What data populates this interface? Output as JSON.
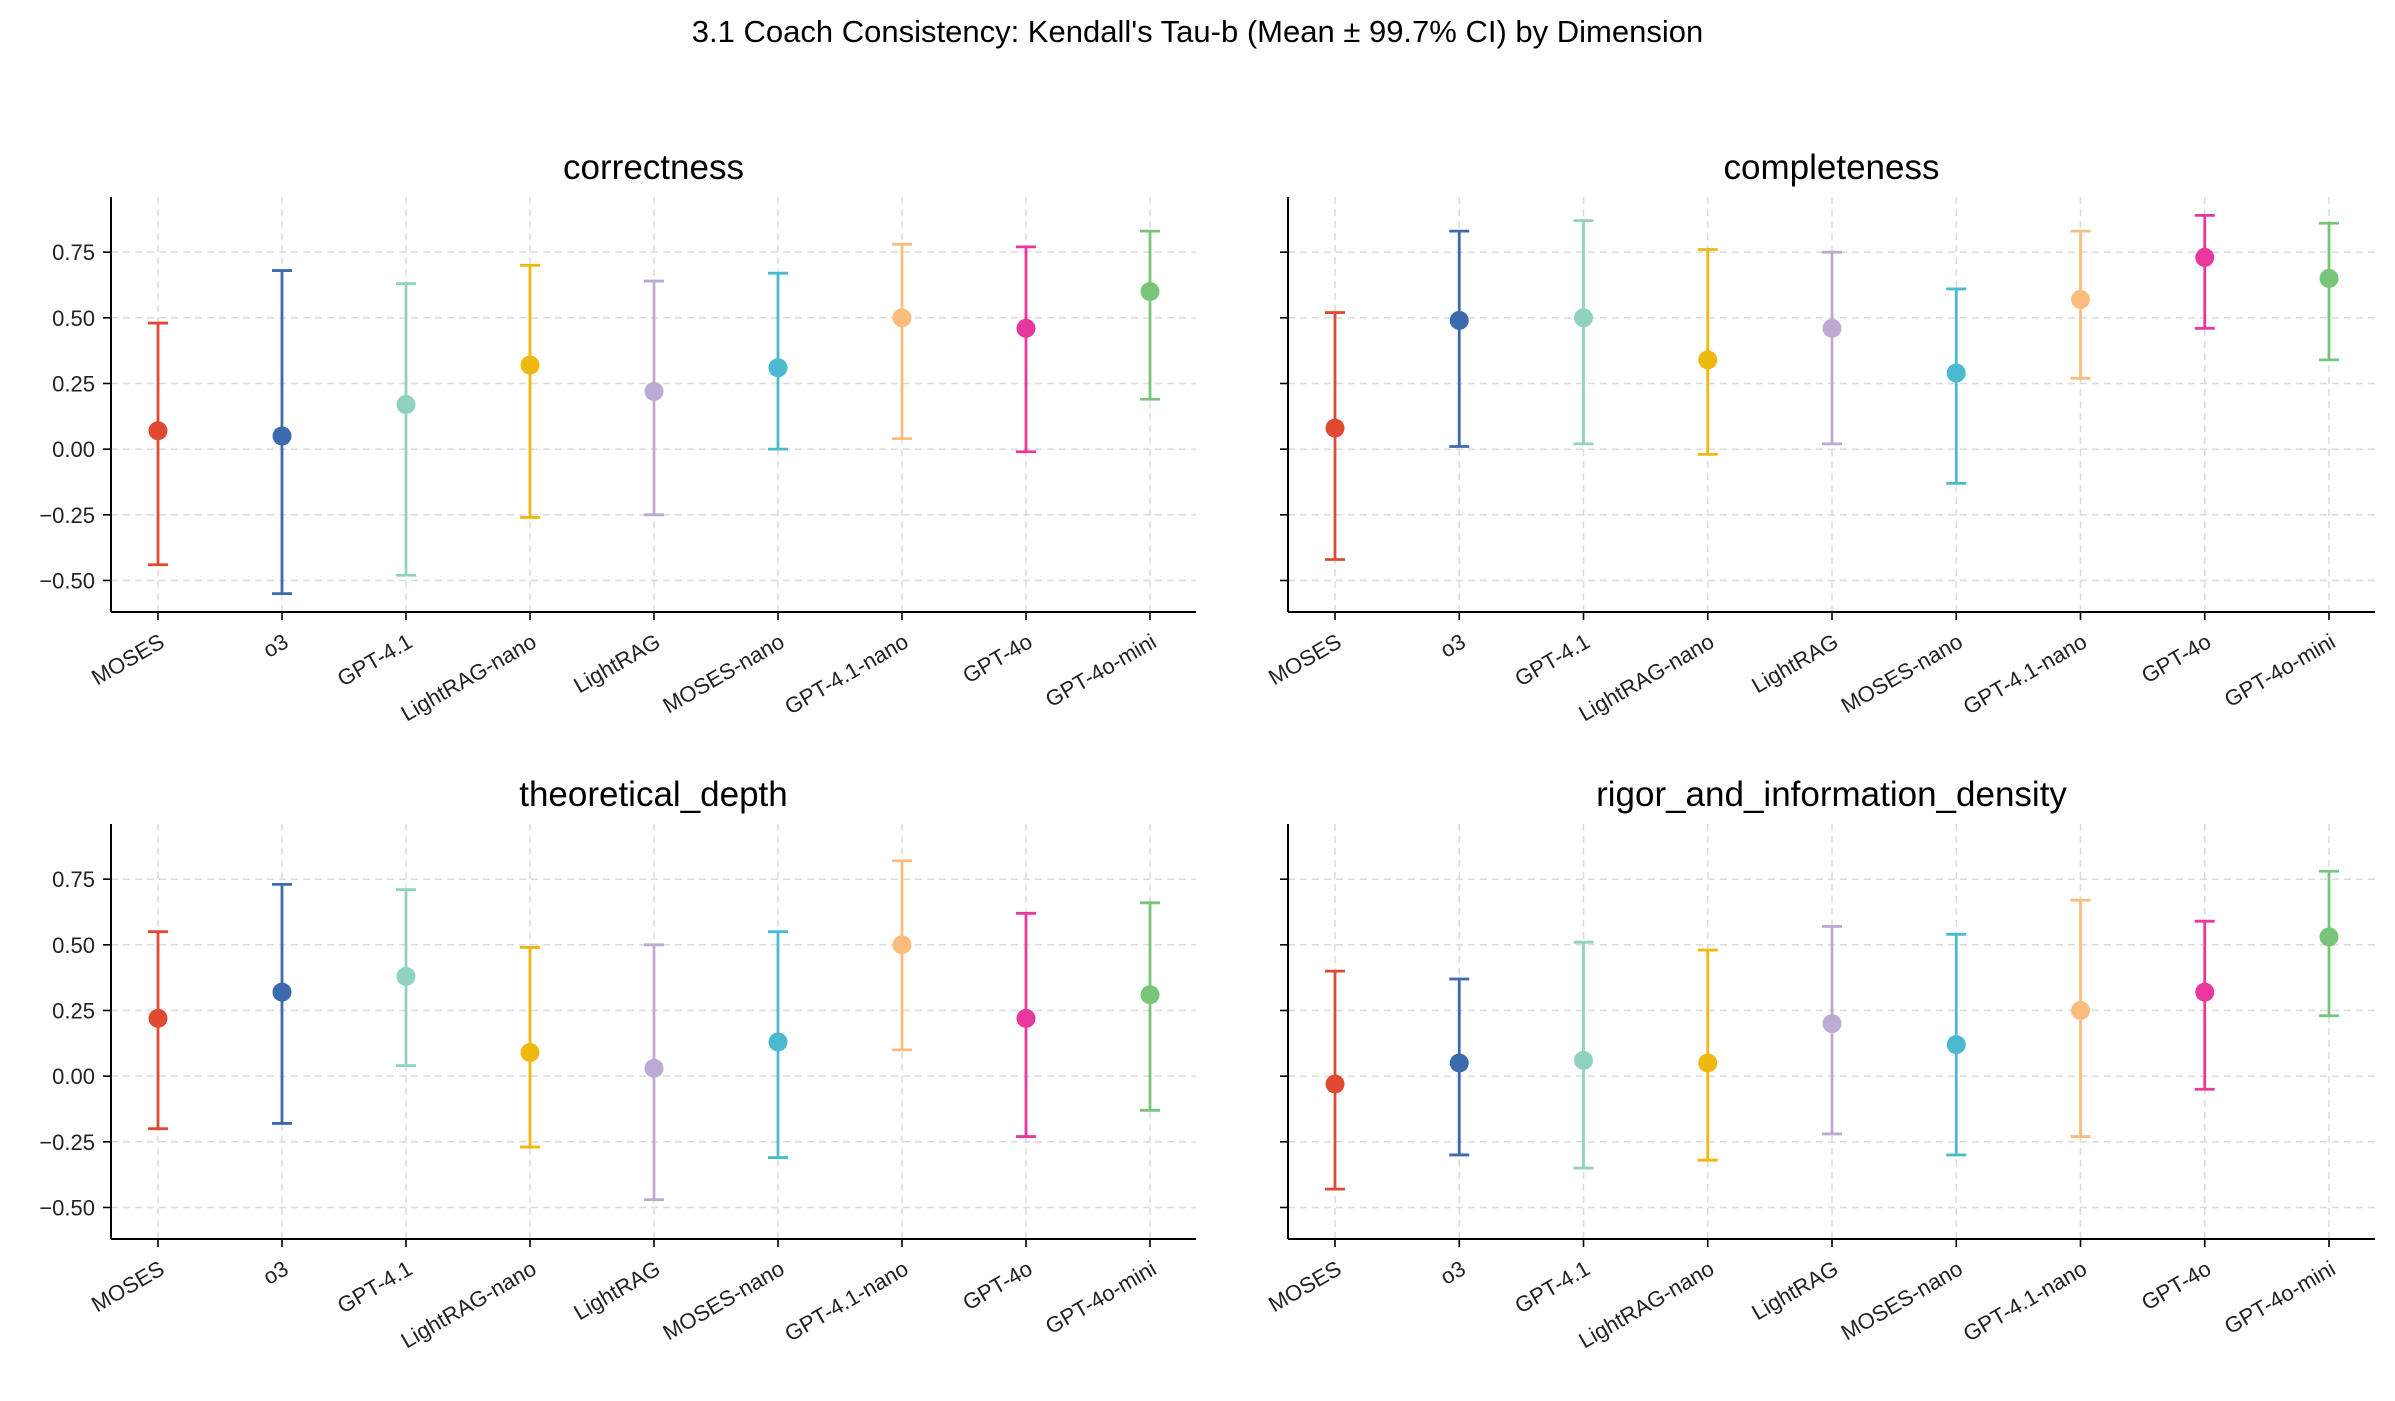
{
  "figure": {
    "title": "3.1 Coach Consistency: Kendall's Tau-b (Mean ± 99.7% CI) by Dimension"
  },
  "chart_data": [
    {
      "type": "scatter",
      "title": "correctness",
      "categories": [
        "MOSES",
        "o3",
        "GPT-4.1",
        "LightRAG-nano",
        "LightRAG",
        "MOSES-nano",
        "GPT-4.1-nano",
        "GPT-4o",
        "GPT-4o-mini"
      ],
      "mean": [
        0.07,
        0.05,
        0.17,
        0.32,
        0.22,
        0.31,
        0.5,
        0.46,
        0.6
      ],
      "ci_lower": [
        -0.44,
        -0.55,
        -0.48,
        -0.26,
        -0.25,
        0.0,
        0.04,
        -0.01,
        0.19
      ],
      "ci_upper": [
        0.48,
        0.68,
        0.63,
        0.7,
        0.64,
        0.67,
        0.78,
        0.77,
        0.83
      ],
      "ylim": [
        -0.62,
        0.96
      ],
      "yticks": [
        "−0.50",
        "−0.25",
        "0.00",
        "0.25",
        "0.50",
        "0.75"
      ],
      "grid": true
    },
    {
      "type": "scatter",
      "title": "completeness",
      "categories": [
        "MOSES",
        "o3",
        "GPT-4.1",
        "LightRAG-nano",
        "LightRAG",
        "MOSES-nano",
        "GPT-4.1-nano",
        "GPT-4o",
        "GPT-4o-mini"
      ],
      "mean": [
        0.08,
        0.49,
        0.5,
        0.34,
        0.46,
        0.29,
        0.57,
        0.73,
        0.65
      ],
      "ci_lower": [
        -0.42,
        0.01,
        0.02,
        -0.02,
        0.02,
        -0.13,
        0.27,
        0.46,
        0.34
      ],
      "ci_upper": [
        0.52,
        0.83,
        0.87,
        0.76,
        0.75,
        0.61,
        0.83,
        0.89,
        0.86
      ],
      "ylim": [
        -0.62,
        0.96
      ],
      "yticks": [],
      "grid": true
    },
    {
      "type": "scatter",
      "title": "theoretical_depth",
      "categories": [
        "MOSES",
        "o3",
        "GPT-4.1",
        "LightRAG-nano",
        "LightRAG",
        "MOSES-nano",
        "GPT-4.1-nano",
        "GPT-4o",
        "GPT-4o-mini"
      ],
      "mean": [
        0.22,
        0.32,
        0.38,
        0.09,
        0.03,
        0.13,
        0.5,
        0.22,
        0.31
      ],
      "ci_lower": [
        -0.2,
        -0.18,
        0.04,
        -0.27,
        -0.47,
        -0.31,
        0.1,
        -0.23,
        -0.13
      ],
      "ci_upper": [
        0.55,
        0.73,
        0.71,
        0.49,
        0.5,
        0.55,
        0.82,
        0.62,
        0.66
      ],
      "ylim": [
        -0.62,
        0.96
      ],
      "yticks": [
        "−0.50",
        "−0.25",
        "0.00",
        "0.25",
        "0.50",
        "0.75"
      ],
      "grid": true
    },
    {
      "type": "scatter",
      "title": "rigor_and_information_density",
      "categories": [
        "MOSES",
        "o3",
        "GPT-4.1",
        "LightRAG-nano",
        "LightRAG",
        "MOSES-nano",
        "GPT-4.1-nano",
        "GPT-4o",
        "GPT-4o-mini"
      ],
      "mean": [
        -0.03,
        0.05,
        0.06,
        0.05,
        0.2,
        0.12,
        0.25,
        0.32,
        0.53
      ],
      "ci_lower": [
        -0.43,
        -0.3,
        -0.35,
        -0.32,
        -0.22,
        -0.3,
        -0.23,
        -0.05,
        0.23
      ],
      "ci_upper": [
        0.4,
        0.37,
        0.51,
        0.48,
        0.57,
        0.54,
        0.67,
        0.59,
        0.78
      ],
      "ylim": [
        -0.62,
        0.96
      ],
      "yticks": [],
      "grid": true
    }
  ],
  "colors": {
    "MOSES": "#e04a33",
    "o3": "#3b6aad",
    "GPT-4.1": "#8fd2bf",
    "LightRAG-nano": "#efb80f",
    "LightRAG": "#bcaad5",
    "MOSES-nano": "#4bbad1",
    "GPT-4.1-nano": "#fbbd7e",
    "GPT-4o": "#e9389d",
    "GPT-4o-mini": "#78c57a"
  }
}
